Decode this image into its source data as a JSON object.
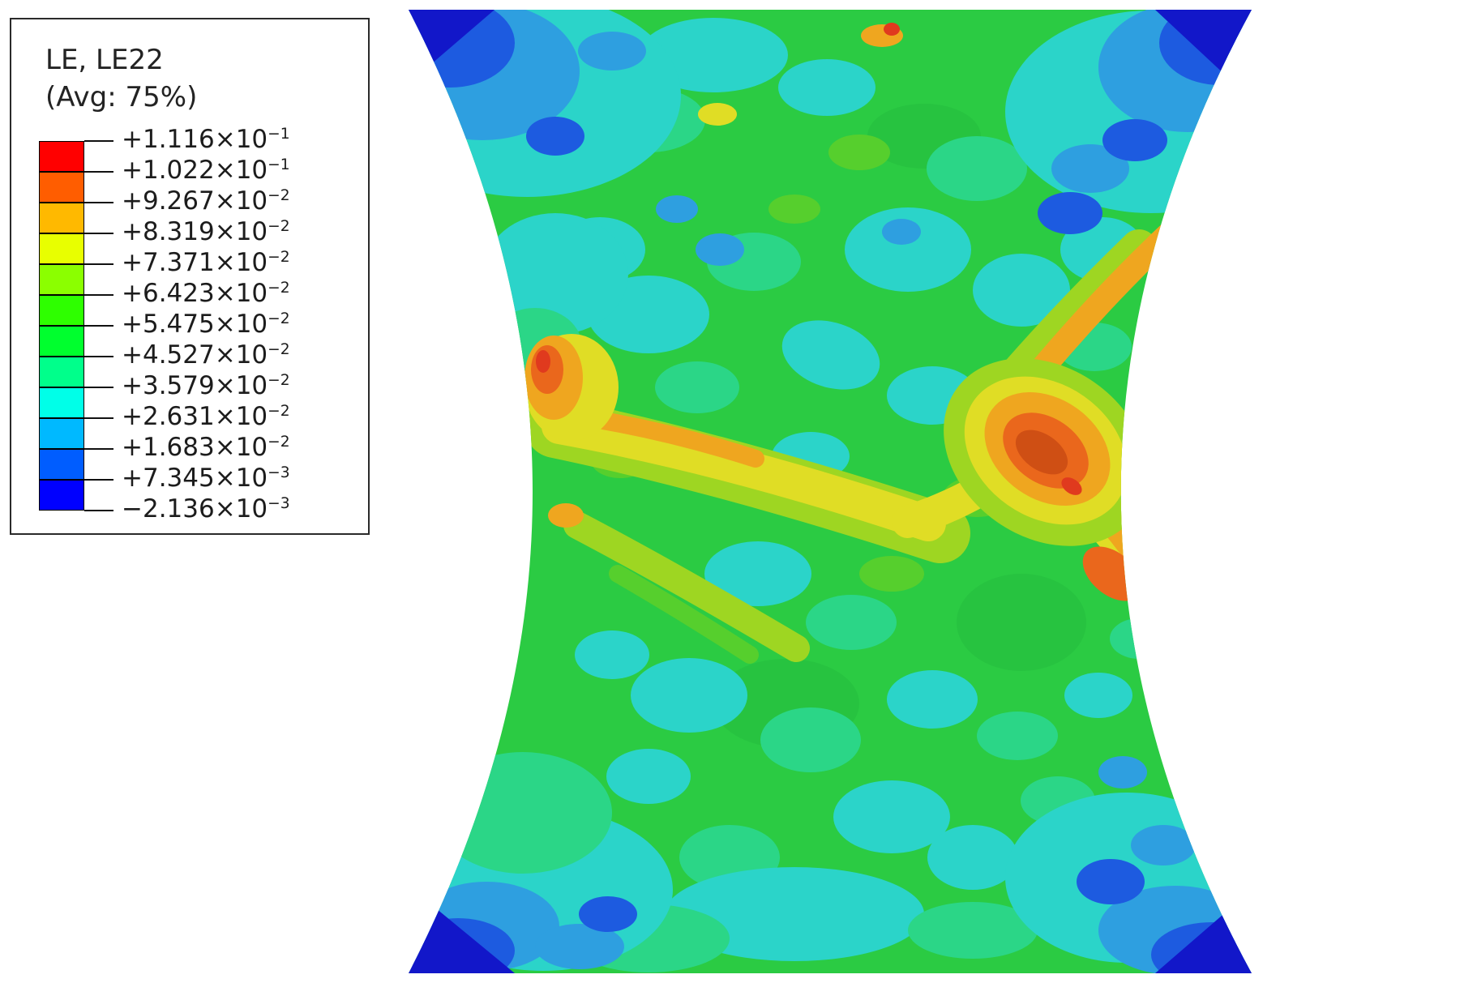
{
  "chart_data": {
    "type": "heatmap",
    "title": "LE, LE22",
    "subtitle": "(Avg: 75%)",
    "field": "Contour plot of logarithmic strain component LE22 on a double-notched (hourglass) specimen: mostly green/cyan mid-range strain, crossed yellow-orange shear bands through the waist, a red-orange hot spot right of center and at the left notch, and dark blue low-strain zones at the four corners",
    "legend_position": "top-left",
    "levels": [
      0.1116,
      0.1022,
      0.09267,
      0.08319,
      0.07371,
      0.06423,
      0.05475,
      0.04527,
      0.03579,
      0.02631,
      0.01683,
      0.007345,
      -0.002136
    ],
    "legend": {
      "times": "×10",
      "entries": [
        {
          "mantissa": "+1.116",
          "exp": "−1"
        },
        {
          "mantissa": "+1.022",
          "exp": "−1"
        },
        {
          "mantissa": "+9.267",
          "exp": "−2"
        },
        {
          "mantissa": "+8.319",
          "exp": "−2"
        },
        {
          "mantissa": "+7.371",
          "exp": "−2"
        },
        {
          "mantissa": "+6.423",
          "exp": "−2"
        },
        {
          "mantissa": "+5.475",
          "exp": "−2"
        },
        {
          "mantissa": "+4.527",
          "exp": "−2"
        },
        {
          "mantissa": "+3.579",
          "exp": "−2"
        },
        {
          "mantissa": "+2.631",
          "exp": "−2"
        },
        {
          "mantissa": "+1.683",
          "exp": "−2"
        },
        {
          "mantissa": "+7.345",
          "exp": "−3"
        },
        {
          "mantissa": "−2.136",
          "exp": "−3"
        }
      ],
      "band_colors": [
        "#FF0000",
        "#FF5D00",
        "#FFB900",
        "#E8FF00",
        "#8BFF00",
        "#2EFF00",
        "#00FF2E",
        "#00FF8B",
        "#00FFE8",
        "#00B9FF",
        "#005DFF",
        "#0000FF"
      ]
    }
  }
}
